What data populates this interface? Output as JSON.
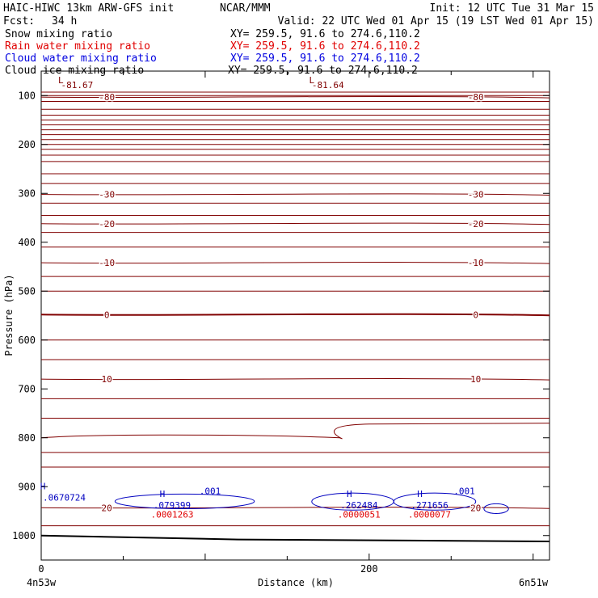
{
  "header": {
    "title_left": "HAIC-HIWC 13km ARW-GFS init",
    "title_center": "NCAR/MMM",
    "init": "Init: 12 UTC Tue 31 Mar 15",
    "fcst_label": "Fcst:",
    "fcst_value": "34 h",
    "valid": "Valid: 22 UTC Wed 01 Apr 15 (19 LST Wed 01 Apr 15)"
  },
  "fields": [
    {
      "name": "Snow mixing ratio",
      "xy": "XY= 259.5, 91.6 to 274.6,110.2",
      "color": "#000000"
    },
    {
      "name": "Rain water mixing ratio",
      "xy": "XY= 259.5, 91.6 to 274.6,110.2",
      "color": "#e00000"
    },
    {
      "name": "Cloud water mixing ratio",
      "xy": "XY= 259.5, 91.6 to 274.6,110.2",
      "color": "#0000e0"
    },
    {
      "name": "Cloud ice mixing ratio",
      "xy": "XY= 259.5, 91.6 to 274.6,110.2",
      "color": "#000000"
    }
  ],
  "chart_data": {
    "type": "line",
    "subtype": "vertical cross-section contour plot",
    "xlabel": "Distance (km)",
    "ylabel": "Pressure (hPa)",
    "x_ticks": [
      0,
      200
    ],
    "x_endpoints": {
      "left": "4n53w",
      "right": "6n51w"
    },
    "xlim": [
      0,
      310
    ],
    "y_ticks": [
      100,
      200,
      300,
      400,
      500,
      600,
      700,
      800,
      900,
      1000
    ],
    "ylim": [
      50,
      1050
    ],
    "y_direction": "inverted",
    "temperature_contours": {
      "color": "#800000",
      "levels": [
        {
          "label": "-80",
          "p": 103
        },
        {
          "label": "-30",
          "p": 302
        },
        {
          "label": "-20",
          "p": 362
        },
        {
          "label": "-10",
          "p": 442
        },
        {
          "label": "0",
          "p": 548
        },
        {
          "label": "10",
          "p": 680
        },
        {
          "label": "20",
          "p": 943
        }
      ],
      "extrema": [
        {
          "type": "L",
          "value": "-81.67",
          "x": 12
        },
        {
          "type": "L",
          "value": "-81.64",
          "x": 165
        }
      ]
    },
    "cloud_water": {
      "color": "#0000c0",
      "contour_label": ".001",
      "maxima": [
        {
          "type": "H",
          "value": ".0670724",
          "x": 0,
          "p": 922
        },
        {
          "type": "H",
          "value": ".079399",
          "x": 68,
          "p": 938
        },
        {
          "type": "H",
          "value": ".262484",
          "x": 182,
          "p": 938
        },
        {
          "type": "H",
          "value": ".271656",
          "x": 225,
          "p": 938
        }
      ]
    },
    "rain_water": {
      "color": "#e00000",
      "maxima": [
        {
          "value": ".0001263",
          "x": 68,
          "p": 957
        },
        {
          "value": ".0000051",
          "x": 182,
          "p": 957
        },
        {
          "value": ".0000077",
          "x": 225,
          "p": 957
        }
      ]
    },
    "terrain": {
      "color": "#000000",
      "p_left": 1000,
      "p_right": 1012
    }
  }
}
